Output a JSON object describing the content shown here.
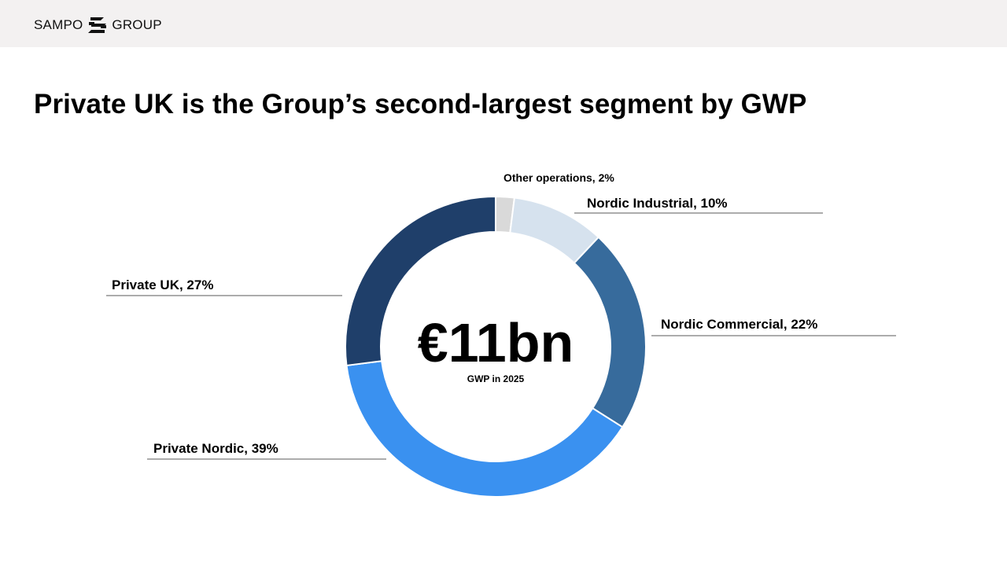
{
  "header": {
    "logo_left": "SAMPO",
    "logo_right": "GROUP",
    "logo_icon": "sampo-s-icon"
  },
  "title": "Private UK is the Group’s second-largest segment by GWP",
  "chart_data": {
    "type": "pie",
    "donut": true,
    "center_value": "€11bn",
    "center_label": "GWP in 2025",
    "slices": [
      {
        "name": "Other operations",
        "value": 2,
        "label": "Other operations, 2%",
        "color": "#d9d9d9"
      },
      {
        "name": "Nordic Industrial",
        "value": 10,
        "label": "Nordic Industrial, 10%",
        "color": "#d6e2ee"
      },
      {
        "name": "Nordic Commercial",
        "value": 22,
        "label": "Nordic Commercial, 22%",
        "color": "#376b9c"
      },
      {
        "name": "Private Nordic",
        "value": 39,
        "label": "Private Nordic, 39%",
        "color": "#3a91f0"
      },
      {
        "name": "Private UK",
        "value": 27,
        "label": "Private UK, 27%",
        "color": "#1f3f6a"
      }
    ]
  }
}
